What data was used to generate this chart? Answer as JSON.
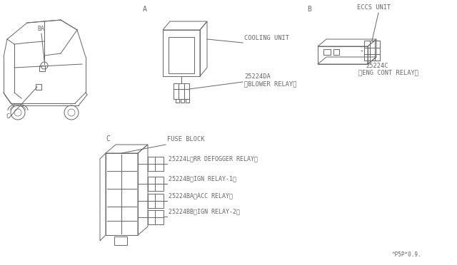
{
  "bg_color": "#ffffff",
  "line_color": "#666666",
  "footnote": "^P5P*0.9.",
  "section_a_label": "A",
  "section_b_label": "B",
  "section_c_label": "C",
  "cooling_unit_label": "COOLING UNIT",
  "blower_relay_part": "25224DA",
  "blower_relay_label": "（BLOWER RELAY）",
  "eccs_unit_label": "ECCS UNIT",
  "eng_cont_part": "25224C",
  "eng_cont_label": "（ENG CONT RELAY）",
  "fuse_block_label": "FUSE BLOCK",
  "relay_1_part": "25224L",
  "relay_1_label": "（RR DEFOGGER RELAY）",
  "relay_2_part": "25224B",
  "relay_2_label": "（IGN RELAY-1）",
  "relay_3_part": "25224BA",
  "relay_3_label": "（ACC RELAY）",
  "relay_4_part": "25224BB",
  "relay_4_label": "（IGN RELAY-2）",
  "car_label_ba": "BA",
  "car_label_c": "C"
}
